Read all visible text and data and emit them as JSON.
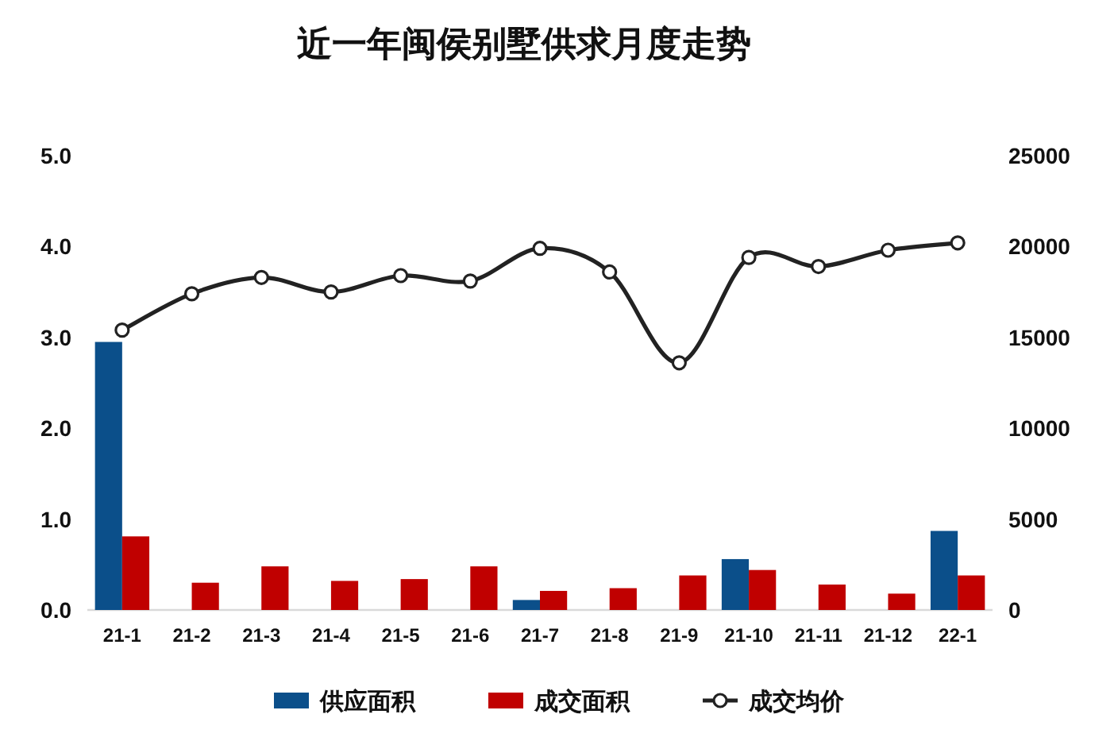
{
  "chart_data": {
    "type": "bar",
    "title": "近一年闽侯别墅供求月度走势",
    "categories": [
      "21-1",
      "21-2",
      "21-3",
      "21-4",
      "21-5",
      "21-6",
      "21-7",
      "21-8",
      "21-9",
      "21-10",
      "21-11",
      "21-12",
      "22-1"
    ],
    "series": [
      {
        "name": "供应面积",
        "color": "#0b4f8a",
        "values": [
          2.95,
          null,
          null,
          null,
          null,
          null,
          0.11,
          null,
          null,
          0.56,
          null,
          null,
          0.87
        ]
      },
      {
        "name": "成交面积",
        "color": "#c00000",
        "values": [
          0.81,
          0.3,
          0.48,
          0.32,
          0.34,
          0.48,
          0.21,
          0.24,
          0.38,
          0.44,
          0.28,
          0.18,
          0.38
        ]
      },
      {
        "name": "成交均价",
        "type": "line",
        "axis": "y2",
        "color": "#222222",
        "marker": "circle",
        "values": [
          15400,
          17400,
          18300,
          17500,
          18400,
          18100,
          19900,
          18600,
          13600,
          19400,
          18900,
          19800,
          20200
        ]
      }
    ],
    "ylim": [
      0,
      5
    ],
    "yticks": [
      {
        "value": 0,
        "label": "0.0"
      },
      {
        "value": 1,
        "label": "1.0"
      },
      {
        "value": 2,
        "label": "2.0"
      },
      {
        "value": 3,
        "label": "3.0"
      },
      {
        "value": 4,
        "label": "4.0"
      },
      {
        "value": 5,
        "label": "5.0"
      }
    ],
    "y2lim": [
      0,
      25000
    ],
    "y2ticks": [
      0,
      5000,
      10000,
      15000,
      20000,
      25000
    ],
    "legend": "bottom"
  }
}
